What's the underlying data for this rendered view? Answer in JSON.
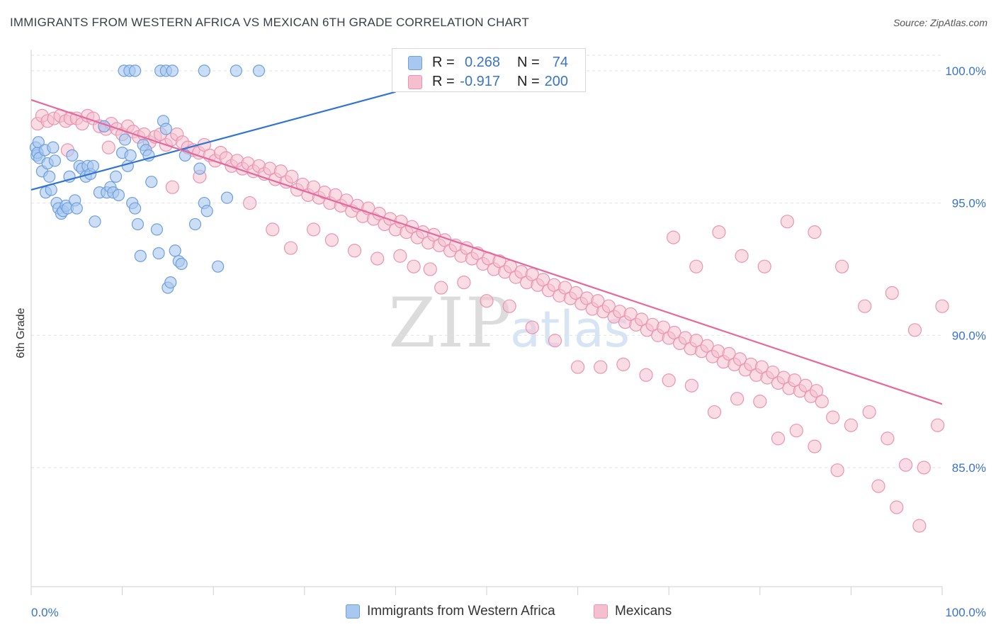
{
  "title": "IMMIGRANTS FROM WESTERN AFRICA VS MEXICAN 6TH GRADE CORRELATION CHART",
  "source": "Source: ZipAtlas.com",
  "watermark": {
    "zip": "ZIP",
    "atlas": "atlas"
  },
  "colors": {
    "blue_fill": "#a9c8f0",
    "blue_stroke": "#6f9fdc",
    "blue_line": "#2f74d0",
    "pink_fill": "#f6bfd0",
    "pink_stroke": "#eb94b2",
    "pink_line": "#e5699a",
    "value_text": "#3a74c4",
    "grid": "#e2e2e2"
  },
  "stats": [
    {
      "series": "Immigrants from Western Africa",
      "r_label": "R =",
      "r_value": "0.268",
      "n_label": "N =",
      "n_value": "74"
    },
    {
      "series": "Mexicans",
      "r_label": "R =",
      "r_value": "-0.917",
      "n_label": "N =",
      "n_value": "200"
    }
  ],
  "chart_data": {
    "type": "scatter",
    "title": "IMMIGRANTS FROM WESTERN AFRICA VS MEXICAN 6TH GRADE CORRELATION CHART",
    "xlabel": "",
    "ylabel": "6th Grade",
    "xlim": [
      0,
      100
    ],
    "ylim": [
      80.5,
      100.8
    ],
    "x_tick_labels": [
      "0.0%",
      "100.0%"
    ],
    "y_ticks": [
      85,
      90,
      95,
      100
    ],
    "y_tick_labels": [
      "85.0%",
      "90.0%",
      "95.0%",
      "100.0%"
    ],
    "legend_position": "bottom",
    "series": [
      {
        "name": "Immigrants from Western Africa",
        "trendline": {
          "x": [
            0,
            40
          ],
          "y": [
            95.5,
            99.2
          ]
        },
        "points": [
          [
            0.5,
            97.1
          ],
          [
            0.6,
            96.8
          ],
          [
            0.7,
            96.9
          ],
          [
            0.8,
            97.3
          ],
          [
            0.9,
            96.7
          ],
          [
            1.2,
            96.2
          ],
          [
            1.5,
            97.0
          ],
          [
            1.6,
            95.4
          ],
          [
            1.8,
            96.5
          ],
          [
            2.0,
            96.0
          ],
          [
            2.2,
            95.5
          ],
          [
            2.4,
            97.1
          ],
          [
            2.6,
            96.6
          ],
          [
            2.8,
            95.0
          ],
          [
            3.0,
            94.8
          ],
          [
            3.3,
            94.6
          ],
          [
            3.5,
            94.7
          ],
          [
            3.8,
            94.9
          ],
          [
            4.0,
            94.8
          ],
          [
            4.2,
            96.0
          ],
          [
            4.5,
            96.8
          ],
          [
            4.8,
            95.1
          ],
          [
            5.0,
            94.8
          ],
          [
            5.3,
            96.4
          ],
          [
            5.6,
            96.3
          ],
          [
            6.0,
            96.0
          ],
          [
            6.2,
            96.4
          ],
          [
            6.5,
            96.1
          ],
          [
            6.8,
            96.4
          ],
          [
            7.0,
            94.3
          ],
          [
            7.5,
            95.4
          ],
          [
            8.0,
            97.9
          ],
          [
            8.3,
            95.4
          ],
          [
            8.7,
            95.6
          ],
          [
            9.0,
            95.4
          ],
          [
            9.3,
            96.0
          ],
          [
            9.6,
            95.3
          ],
          [
            10.0,
            96.9
          ],
          [
            10.3,
            97.4
          ],
          [
            10.6,
            96.4
          ],
          [
            10.9,
            96.8
          ],
          [
            11.1,
            95.0
          ],
          [
            11.4,
            94.8
          ],
          [
            11.7,
            94.2
          ],
          [
            12.0,
            93.0
          ],
          [
            12.3,
            97.2
          ],
          [
            12.6,
            97.0
          ],
          [
            12.9,
            96.8
          ],
          [
            13.2,
            95.8
          ],
          [
            13.8,
            94.0
          ],
          [
            14.0,
            93.1
          ],
          [
            14.5,
            98.1
          ],
          [
            14.8,
            97.8
          ],
          [
            15.0,
            91.8
          ],
          [
            15.3,
            92.0
          ],
          [
            15.8,
            93.2
          ],
          [
            16.2,
            92.8
          ],
          [
            16.5,
            92.7
          ],
          [
            16.9,
            96.8
          ],
          [
            18.0,
            94.2
          ],
          [
            18.5,
            96.3
          ],
          [
            19.0,
            95.0
          ],
          [
            19.3,
            94.7
          ],
          [
            20.5,
            92.6
          ],
          [
            21.5,
            95.2
          ],
          [
            10.2,
            100.0
          ],
          [
            10.8,
            100.0
          ],
          [
            11.4,
            100.0
          ],
          [
            14.2,
            100.0
          ],
          [
            14.8,
            100.0
          ],
          [
            15.5,
            100.0
          ],
          [
            19.0,
            100.0
          ],
          [
            22.5,
            100.0
          ],
          [
            25.0,
            100.0
          ]
        ]
      },
      {
        "name": "Mexicans",
        "trendline": {
          "x": [
            0,
            100
          ],
          "y": [
            98.9,
            87.4
          ]
        },
        "points": [
          [
            0.7,
            98.0
          ],
          [
            1.2,
            98.3
          ],
          [
            1.8,
            98.1
          ],
          [
            2.5,
            98.2
          ],
          [
            3.2,
            98.3
          ],
          [
            3.8,
            98.1
          ],
          [
            4.3,
            98.2
          ],
          [
            5.0,
            98.2
          ],
          [
            5.6,
            98.0
          ],
          [
            6.2,
            98.3
          ],
          [
            6.8,
            98.2
          ],
          [
            7.5,
            97.9
          ],
          [
            8.2,
            97.8
          ],
          [
            8.8,
            98.0
          ],
          [
            9.4,
            97.8
          ],
          [
            10.0,
            97.6
          ],
          [
            10.6,
            97.9
          ],
          [
            11.2,
            97.7
          ],
          [
            11.8,
            97.5
          ],
          [
            12.4,
            97.6
          ],
          [
            13.0,
            97.3
          ],
          [
            13.6,
            97.5
          ],
          [
            14.2,
            97.6
          ],
          [
            14.8,
            97.2
          ],
          [
            15.4,
            97.4
          ],
          [
            16.0,
            97.6
          ],
          [
            16.6,
            97.3
          ],
          [
            17.2,
            97.1
          ],
          [
            17.8,
            97.0
          ],
          [
            18.4,
            96.9
          ],
          [
            19.0,
            97.2
          ],
          [
            19.6,
            96.8
          ],
          [
            20.2,
            96.6
          ],
          [
            20.8,
            96.9
          ],
          [
            21.4,
            96.7
          ],
          [
            22.0,
            96.4
          ],
          [
            22.6,
            96.6
          ],
          [
            23.2,
            96.3
          ],
          [
            23.8,
            96.5
          ],
          [
            24.4,
            96.2
          ],
          [
            25.0,
            96.4
          ],
          [
            25.6,
            96.1
          ],
          [
            26.2,
            96.3
          ],
          [
            26.8,
            95.9
          ],
          [
            27.4,
            96.2
          ],
          [
            28.0,
            95.8
          ],
          [
            28.6,
            96.0
          ],
          [
            29.2,
            95.5
          ],
          [
            29.8,
            95.7
          ],
          [
            30.4,
            95.3
          ],
          [
            31.0,
            95.6
          ],
          [
            31.6,
            95.2
          ],
          [
            32.2,
            95.4
          ],
          [
            32.8,
            95.0
          ],
          [
            33.4,
            95.3
          ],
          [
            34.0,
            94.9
          ],
          [
            34.6,
            95.1
          ],
          [
            35.2,
            94.7
          ],
          [
            35.8,
            94.9
          ],
          [
            36.4,
            94.5
          ],
          [
            37.0,
            94.8
          ],
          [
            37.6,
            94.4
          ],
          [
            38.2,
            94.6
          ],
          [
            38.8,
            94.2
          ],
          [
            39.4,
            94.4
          ],
          [
            40.0,
            94.0
          ],
          [
            40.6,
            94.3
          ],
          [
            41.2,
            93.9
          ],
          [
            41.8,
            94.1
          ],
          [
            42.4,
            93.7
          ],
          [
            43.0,
            93.9
          ],
          [
            43.6,
            93.5
          ],
          [
            44.2,
            93.8
          ],
          [
            44.8,
            93.4
          ],
          [
            45.4,
            93.6
          ],
          [
            46.0,
            93.2
          ],
          [
            46.6,
            93.4
          ],
          [
            47.2,
            93.0
          ],
          [
            47.8,
            93.3
          ],
          [
            48.4,
            92.9
          ],
          [
            49.0,
            93.1
          ],
          [
            49.6,
            92.7
          ],
          [
            50.2,
            92.9
          ],
          [
            50.8,
            92.5
          ],
          [
            51.4,
            92.8
          ],
          [
            52.0,
            92.4
          ],
          [
            52.6,
            92.6
          ],
          [
            53.2,
            92.2
          ],
          [
            53.8,
            92.4
          ],
          [
            54.4,
            92.0
          ],
          [
            55.0,
            92.3
          ],
          [
            55.6,
            91.9
          ],
          [
            56.2,
            92.1
          ],
          [
            56.8,
            91.7
          ],
          [
            57.4,
            91.9
          ],
          [
            58.0,
            91.5
          ],
          [
            58.6,
            91.8
          ],
          [
            59.2,
            91.4
          ],
          [
            59.8,
            91.6
          ],
          [
            60.4,
            91.2
          ],
          [
            61.0,
            91.4
          ],
          [
            61.6,
            91.0
          ],
          [
            62.2,
            91.3
          ],
          [
            62.8,
            90.9
          ],
          [
            63.4,
            91.1
          ],
          [
            64.0,
            90.7
          ],
          [
            64.6,
            90.9
          ],
          [
            65.2,
            90.5
          ],
          [
            65.8,
            90.8
          ],
          [
            66.4,
            90.4
          ],
          [
            67.0,
            90.6
          ],
          [
            67.6,
            90.2
          ],
          [
            68.2,
            90.4
          ],
          [
            68.8,
            90.0
          ],
          [
            69.4,
            90.3
          ],
          [
            70.0,
            89.9
          ],
          [
            70.6,
            90.1
          ],
          [
            71.2,
            89.7
          ],
          [
            71.8,
            89.9
          ],
          [
            72.4,
            89.5
          ],
          [
            73.0,
            89.8
          ],
          [
            73.6,
            89.4
          ],
          [
            74.2,
            89.6
          ],
          [
            74.8,
            89.2
          ],
          [
            75.4,
            89.4
          ],
          [
            76.0,
            89.0
          ],
          [
            76.6,
            89.3
          ],
          [
            77.2,
            88.9
          ],
          [
            77.8,
            89.1
          ],
          [
            78.4,
            88.7
          ],
          [
            79.0,
            88.9
          ],
          [
            79.6,
            88.5
          ],
          [
            80.2,
            88.8
          ],
          [
            80.8,
            88.4
          ],
          [
            81.4,
            88.6
          ],
          [
            82.0,
            88.2
          ],
          [
            82.6,
            88.4
          ],
          [
            83.2,
            88.0
          ],
          [
            83.8,
            88.3
          ],
          [
            84.4,
            87.9
          ],
          [
            85.0,
            88.1
          ],
          [
            85.6,
            87.7
          ],
          [
            86.2,
            87.9
          ],
          [
            86.8,
            87.5
          ],
          [
            4.0,
            97.0
          ],
          [
            8.5,
            97.1
          ],
          [
            15.5,
            95.6
          ],
          [
            18.5,
            96.0
          ],
          [
            24.0,
            95.0
          ],
          [
            26.5,
            94.0
          ],
          [
            28.5,
            93.3
          ],
          [
            31.0,
            94.0
          ],
          [
            33.0,
            93.6
          ],
          [
            35.5,
            93.2
          ],
          [
            38.0,
            92.9
          ],
          [
            40.5,
            93.0
          ],
          [
            42.0,
            92.6
          ],
          [
            43.8,
            92.5
          ],
          [
            45.0,
            91.8
          ],
          [
            47.5,
            92.0
          ],
          [
            50.0,
            91.3
          ],
          [
            52.5,
            91.1
          ],
          [
            55.0,
            90.3
          ],
          [
            57.5,
            89.8
          ],
          [
            60.0,
            88.8
          ],
          [
            62.5,
            88.8
          ],
          [
            65.0,
            88.9
          ],
          [
            67.5,
            88.5
          ],
          [
            70.0,
            88.3
          ],
          [
            72.5,
            88.1
          ],
          [
            75.0,
            87.1
          ],
          [
            77.5,
            87.6
          ],
          [
            80.0,
            87.5
          ],
          [
            82.0,
            86.1
          ],
          [
            84.0,
            86.4
          ],
          [
            86.0,
            85.8
          ],
          [
            88.0,
            86.9
          ],
          [
            90.0,
            86.6
          ],
          [
            92.0,
            87.1
          ],
          [
            94.0,
            86.1
          ],
          [
            96.0,
            85.1
          ],
          [
            98.0,
            85.0
          ],
          [
            88.5,
            84.9
          ],
          [
            93.0,
            84.3
          ],
          [
            95.0,
            83.5
          ],
          [
            97.5,
            82.8
          ],
          [
            99.5,
            86.6
          ],
          [
            100.0,
            91.1
          ],
          [
            97.0,
            90.2
          ],
          [
            94.5,
            91.6
          ],
          [
            91.5,
            91.1
          ],
          [
            89.0,
            92.6
          ],
          [
            86.0,
            93.9
          ],
          [
            83.0,
            94.3
          ],
          [
            80.5,
            92.6
          ],
          [
            78.0,
            93.0
          ],
          [
            75.5,
            93.9
          ],
          [
            73.0,
            92.6
          ],
          [
            70.5,
            93.7
          ]
        ]
      }
    ]
  }
}
